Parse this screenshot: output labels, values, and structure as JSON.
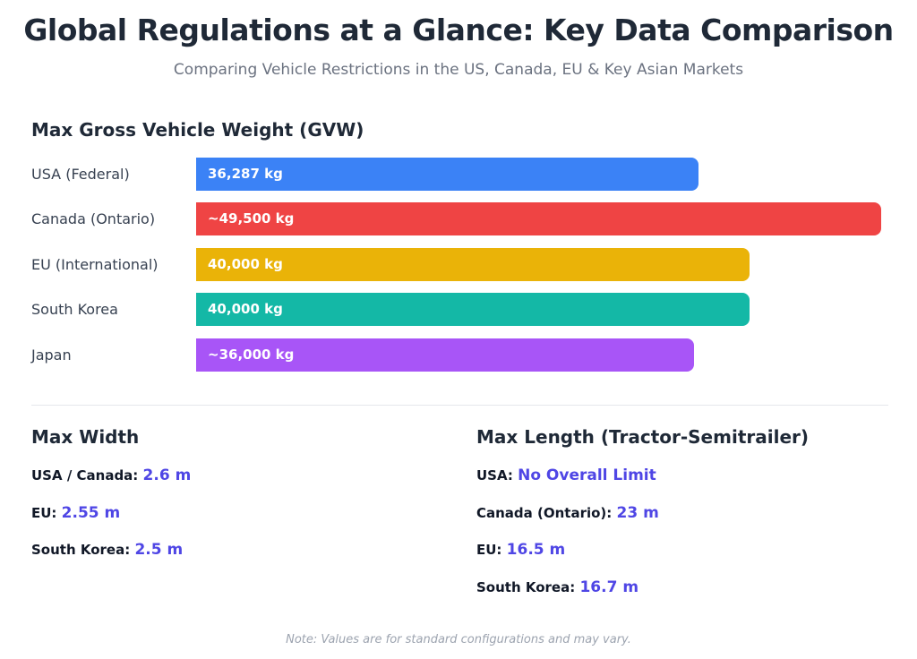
{
  "title": "Global Regulations at a Glance: Key Data Comparison",
  "subtitle": "Comparing Vehicle Restrictions in the US, Canada, EU & Key Asian Markets",
  "chart_data": {
    "type": "bar",
    "orientation": "horizontal",
    "title": "Max Gross Vehicle Weight (GVW)",
    "unit": "kg",
    "categories": [
      "USA (Federal)",
      "Canada (Ontario)",
      "EU (International)",
      "South Korea",
      "Japan"
    ],
    "values": [
      36287,
      49500,
      40000,
      40000,
      36000
    ],
    "value_labels": [
      "36,287 kg",
      "~49,500 kg",
      "40,000 kg",
      "40,000 kg",
      "~36,000 kg"
    ],
    "colors": [
      "#3b82f6",
      "#ef4444",
      "#eab308",
      "#14b8a6",
      "#a855f7"
    ]
  },
  "width_section": {
    "title": "Max Width",
    "items": [
      {
        "label": "USA / Canada:",
        "value": "2.6 m"
      },
      {
        "label": "EU:",
        "value": "2.55 m"
      },
      {
        "label": "South Korea:",
        "value": "2.5 m"
      }
    ]
  },
  "length_section": {
    "title": "Max Length (Tractor-Semitrailer)",
    "items": [
      {
        "label": "USA:",
        "value": "No Overall Limit"
      },
      {
        "label": "Canada (Ontario):",
        "value": "23 m"
      },
      {
        "label": "EU:",
        "value": "16.5 m"
      },
      {
        "label": "South Korea:",
        "value": "16.7 m"
      }
    ]
  },
  "note": "Note: Values are for standard configurations and may vary."
}
